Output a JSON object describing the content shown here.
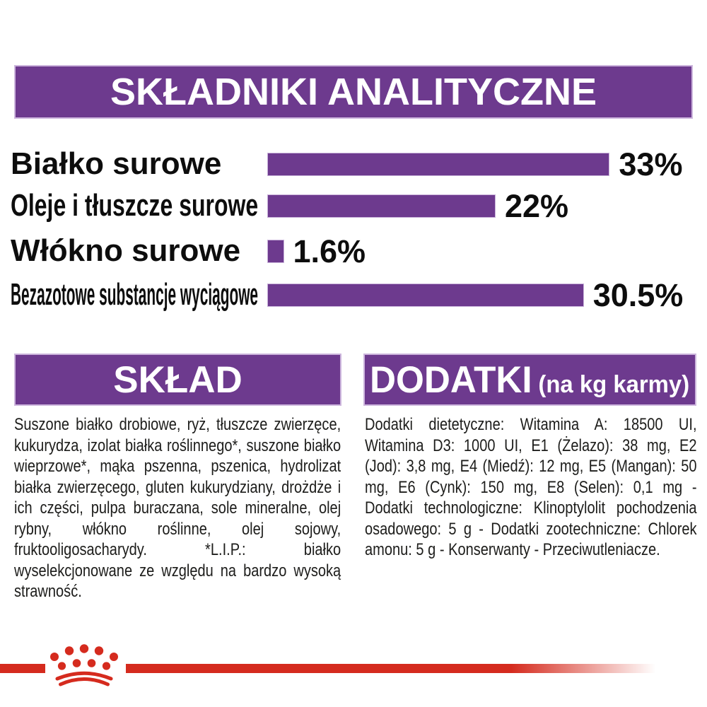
{
  "analytics": {
    "title": "SKŁADNIKI ANALITYCZNE"
  },
  "chart": {
    "rows": [
      {
        "label": "Białko surowe",
        "value": 33,
        "display": "33%"
      },
      {
        "label": "Oleje i tłuszcze surowe",
        "value": 22,
        "display": "22%"
      },
      {
        "label": "Włókno surowe",
        "value": 1.6,
        "display": "1.6%"
      },
      {
        "label": "Bezazotowe substancje wyciągowe",
        "value": 30.5,
        "display": "30.5%"
      }
    ]
  },
  "chart_data": {
    "type": "bar",
    "orientation": "horizontal",
    "title": "SKŁADNIKI ANALITYCZNE",
    "categories": [
      "Białko surowe",
      "Oleje i tłuszcze surowe",
      "Włókno surowe",
      "Bezazotowe substancje wyciągowe"
    ],
    "values": [
      33,
      22,
      1.6,
      30.5
    ],
    "value_labels": [
      "33%",
      "22%",
      "1.6%",
      "30.5%"
    ],
    "unit": "%",
    "xlim": [
      0,
      35
    ],
    "grid": false,
    "bar_color": "#6d3a8e"
  },
  "sklad": {
    "header": "SKŁAD",
    "body": "Suszone białko drobiowe, ryż, tłuszcze zwierzęce, kukurydza, izolat białka roślinnego*, suszone białko wieprzowe*, mąka pszenna, pszenica, hydrolizat białka zwierzęcego, gluten kukurydziany, drożdże i ich części, pulpa buraczana, sole mineralne, olej rybny, włókno roślinne, olej sojowy, fruktooligosacharydy. *L.I.P.: białko wyselekcjonowane ze względu na bardzo wysoką strawność."
  },
  "dodatki": {
    "header": "DODATKI",
    "header_suffix": "(na kg karmy)",
    "body": "Dodatki dietetyczne: Witamina A: 18500 UI, Witamina D3: 1000 UI, E1 (Żelazo): 38 mg, E2 (Jod): 3,8 mg, E4 (Miedź): 12 mg, E5 (Mangan): 50 mg, E6 (Cynk): 150 mg, E8 (Selen): 0,1 mg - Dodatki technologiczne: Klinoptylolit pochodzenia osadowego: 5 g - Dodatki zootechniczne: Chlorek amonu: 5 g - Konserwanty - Przeciwutleniacze."
  },
  "logo": {
    "name": "Royal Canin crown"
  },
  "colors": {
    "purple": "#6d3a8e",
    "red": "#d52b1e",
    "text": "#1d1d1b"
  }
}
